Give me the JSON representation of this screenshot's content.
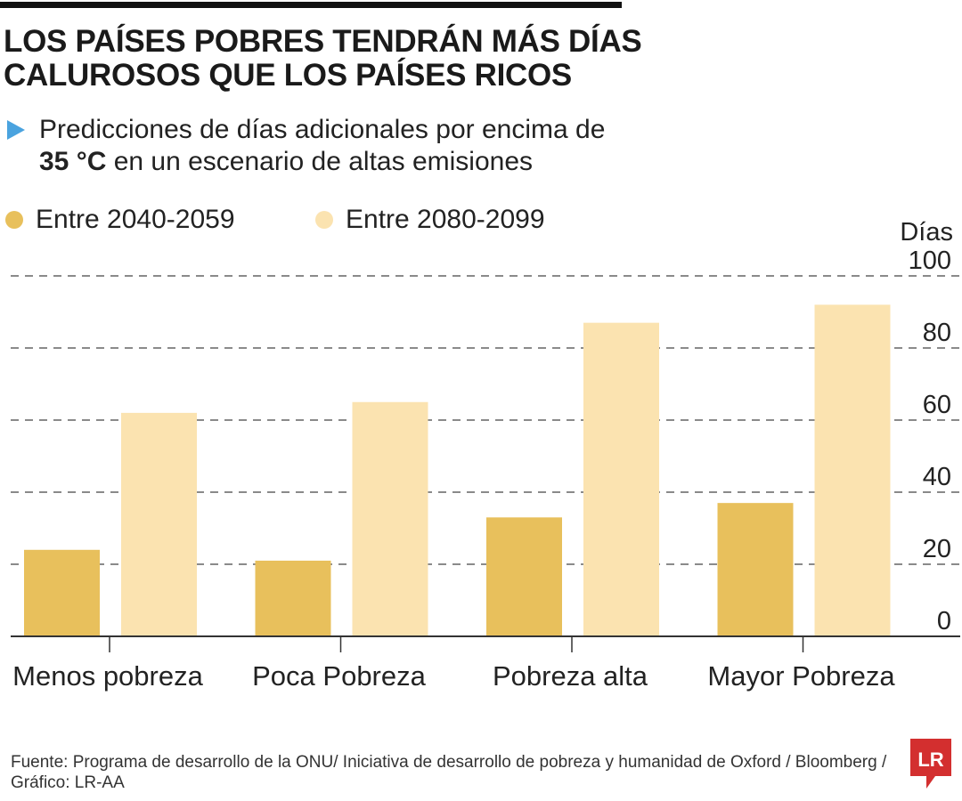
{
  "title": "LOS PAÍSES POBRES TENDRÁN MÁS DÍAS CALUROSOS QUE LOS PAÍSES RICOS",
  "subtitle_pre": "Predicciones de días adicionales por encima de ",
  "subtitle_bold": "35 °C",
  "subtitle_post": " en un escenario de altas emisiones",
  "source": "Fuente: Programa de desarrollo de la ONU/ Iniciativa de desarrollo de pobreza y humanidad de Oxford / Bloomberg / Gráfico: LR-AA",
  "logo_text": "LR",
  "colors": {
    "series1": "#e8c05c",
    "series2": "#fbe3b0",
    "accent": "#4aa3df",
    "logo": "#d32f2f"
  },
  "chart_data": {
    "type": "bar",
    "categories": [
      "Menos pobreza",
      "Poca Pobreza",
      "Pobreza alta",
      "Mayor Pobreza"
    ],
    "series": [
      {
        "name": "Entre 2040-2059",
        "values": [
          24,
          21,
          33,
          37
        ]
      },
      {
        "name": "Entre 2080-2099",
        "values": [
          62,
          65,
          87,
          92
        ]
      }
    ],
    "ylabel": "Días",
    "ylim": [
      0,
      100
    ],
    "yticks": [
      "0",
      "20",
      "40",
      "60",
      "80",
      "100"
    ],
    "grid": true,
    "legend": "top-left"
  }
}
